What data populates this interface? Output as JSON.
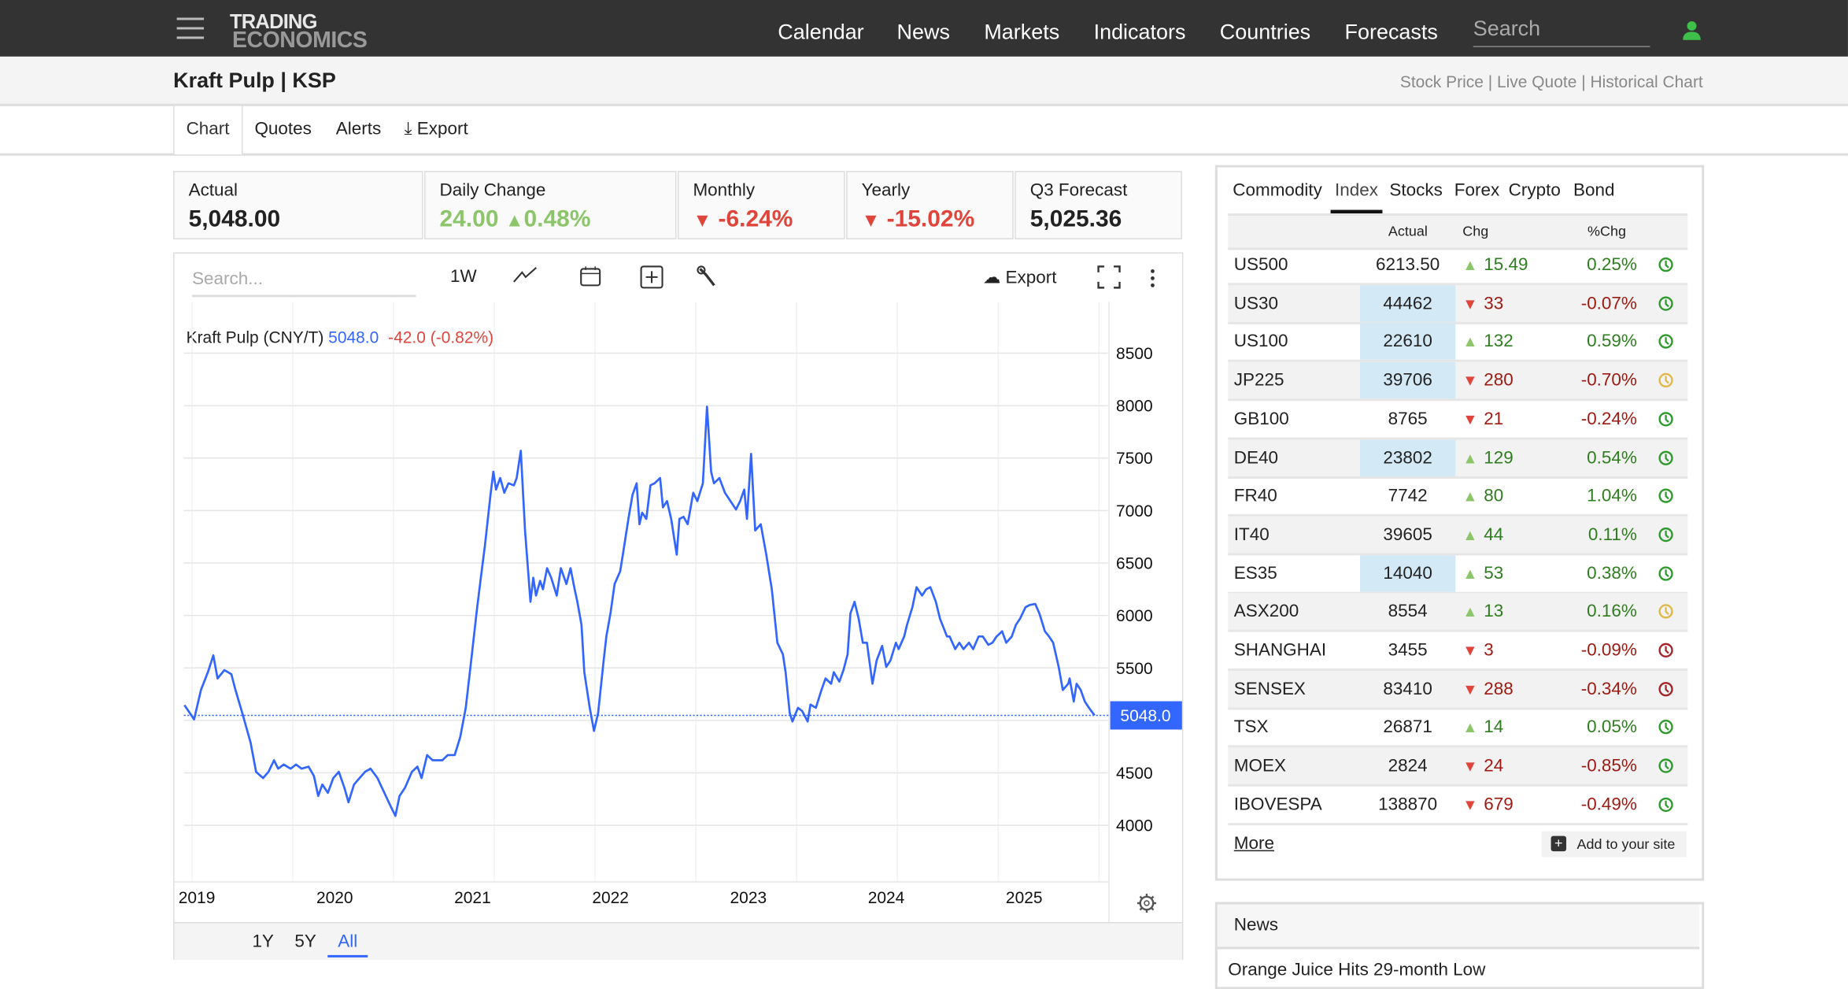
{
  "header": {
    "logo_line1": "TRADING",
    "logo_line2": "ECONOMICS",
    "nav": [
      "Calendar",
      "News",
      "Markets",
      "Indicators",
      "Countries",
      "Forecasts"
    ],
    "search_placeholder": "Search"
  },
  "page": {
    "title": "Kraft Pulp | KSP",
    "links": "Stock Price | Live Quote | Historical Chart"
  },
  "tabs": {
    "chart": "Chart",
    "quotes": "Quotes",
    "alerts": "Alerts",
    "export": "Export"
  },
  "stats": {
    "actual": {
      "label": "Actual",
      "value": "5,048.00"
    },
    "daily": {
      "label": "Daily Change",
      "value": "24.00",
      "pct": "0.48%"
    },
    "monthly": {
      "label": "Monthly",
      "value": "-6.24%"
    },
    "yearly": {
      "label": "Yearly",
      "value": "-15.02%"
    },
    "forecast": {
      "label": "Q3 Forecast",
      "value": "5,025.36"
    }
  },
  "toolbar": {
    "search_placeholder": "Search...",
    "interval": "1W",
    "export": "Export"
  },
  "legend": {
    "name": "Kraft Pulp (CNY/T)",
    "value": "5048.0",
    "change": "-42.0 (-0.82%)"
  },
  "ranges": [
    "1Y",
    "5Y",
    "All"
  ],
  "colors": {
    "line": "#3366ff",
    "up": "#8cc56a",
    "down": "#e0453c",
    "clock_green": "#2e9a2e",
    "clock_yellow": "#e0b84a",
    "clock_red": "#a3262a"
  },
  "chart_data": {
    "type": "line",
    "title": "Kraft Pulp (CNY/T)",
    "ylim": [
      3800,
      8800
    ],
    "yticks": [
      4000,
      4500,
      5000,
      5500,
      6000,
      6500,
      7000,
      7500,
      8000,
      8500
    ],
    "yticklabels": [
      "4000",
      "4500",
      "",
      "5500",
      "6000",
      "6500",
      "7000",
      "7500",
      "8000",
      "8500"
    ],
    "xticks": [
      2019,
      2020,
      2021,
      2022,
      2023,
      2024,
      2025
    ],
    "last_label": "5048.0",
    "last_value": 5048,
    "points": [
      [
        2018.91,
        5146
      ],
      [
        2018.98,
        5010
      ],
      [
        2019.03,
        5290
      ],
      [
        2019.08,
        5460
      ],
      [
        2019.12,
        5620
      ],
      [
        2019.15,
        5400
      ],
      [
        2019.2,
        5480
      ],
      [
        2019.25,
        5440
      ],
      [
        2019.28,
        5290
      ],
      [
        2019.33,
        5070
      ],
      [
        2019.39,
        4790
      ],
      [
        2019.43,
        4510
      ],
      [
        2019.48,
        4450
      ],
      [
        2019.52,
        4510
      ],
      [
        2019.56,
        4620
      ],
      [
        2019.59,
        4540
      ],
      [
        2019.63,
        4580
      ],
      [
        2019.68,
        4540
      ],
      [
        2019.72,
        4580
      ],
      [
        2019.76,
        4540
      ],
      [
        2019.81,
        4560
      ],
      [
        2019.85,
        4470
      ],
      [
        2019.88,
        4280
      ],
      [
        2019.91,
        4390
      ],
      [
        2019.95,
        4310
      ],
      [
        2019.99,
        4450
      ],
      [
        2020.03,
        4510
      ],
      [
        2020.07,
        4360
      ],
      [
        2020.1,
        4220
      ],
      [
        2020.14,
        4390
      ],
      [
        2020.18,
        4450
      ],
      [
        2020.22,
        4510
      ],
      [
        2020.26,
        4540
      ],
      [
        2020.31,
        4450
      ],
      [
        2020.36,
        4310
      ],
      [
        2020.41,
        4170
      ],
      [
        2020.44,
        4090
      ],
      [
        2020.47,
        4280
      ],
      [
        2020.51,
        4360
      ],
      [
        2020.56,
        4510
      ],
      [
        2020.6,
        4560
      ],
      [
        2020.63,
        4450
      ],
      [
        2020.67,
        4670
      ],
      [
        2020.71,
        4620
      ],
      [
        2020.78,
        4620
      ],
      [
        2020.82,
        4670
      ],
      [
        2020.87,
        4670
      ],
      [
        2020.91,
        4840
      ],
      [
        2020.95,
        5120
      ],
      [
        2020.99,
        5570
      ],
      [
        2021.03,
        6040
      ],
      [
        2021.06,
        6360
      ],
      [
        2021.09,
        6670
      ],
      [
        2021.13,
        7150
      ],
      [
        2021.15,
        7370
      ],
      [
        2021.17,
        7200
      ],
      [
        2021.2,
        7310
      ],
      [
        2021.23,
        7170
      ],
      [
        2021.26,
        7260
      ],
      [
        2021.3,
        7240
      ],
      [
        2021.32,
        7310
      ],
      [
        2021.35,
        7570
      ],
      [
        2021.38,
        6810
      ],
      [
        2021.42,
        6130
      ],
      [
        2021.44,
        6360
      ],
      [
        2021.46,
        6190
      ],
      [
        2021.49,
        6330
      ],
      [
        2021.51,
        6250
      ],
      [
        2021.54,
        6450
      ],
      [
        2021.57,
        6360
      ],
      [
        2021.61,
        6190
      ],
      [
        2021.64,
        6450
      ],
      [
        2021.68,
        6300
      ],
      [
        2021.71,
        6450
      ],
      [
        2021.74,
        6250
      ],
      [
        2021.76,
        6130
      ],
      [
        2021.79,
        5910
      ],
      [
        2021.81,
        5460
      ],
      [
        2021.85,
        5120
      ],
      [
        2021.88,
        4900
      ],
      [
        2021.91,
        5070
      ],
      [
        2021.95,
        5570
      ],
      [
        2021.97,
        5800
      ],
      [
        2022.0,
        6020
      ],
      [
        2022.03,
        6300
      ],
      [
        2022.07,
        6420
      ],
      [
        2022.09,
        6580
      ],
      [
        2022.13,
        6920
      ],
      [
        2022.16,
        7150
      ],
      [
        2022.19,
        7260
      ],
      [
        2022.21,
        6870
      ],
      [
        2022.23,
        6980
      ],
      [
        2022.26,
        6920
      ],
      [
        2022.29,
        7240
      ],
      [
        2022.32,
        7260
      ],
      [
        2022.36,
        7310
      ],
      [
        2022.38,
        7030
      ],
      [
        2022.41,
        7090
      ],
      [
        2022.44,
        6920
      ],
      [
        2022.48,
        6580
      ],
      [
        2022.5,
        6920
      ],
      [
        2022.53,
        6940
      ],
      [
        2022.56,
        6870
      ],
      [
        2022.6,
        7170
      ],
      [
        2022.63,
        7090
      ],
      [
        2022.67,
        7260
      ],
      [
        2022.7,
        7990
      ],
      [
        2022.73,
        7370
      ],
      [
        2022.75,
        7260
      ],
      [
        2022.79,
        7310
      ],
      [
        2022.83,
        7170
      ],
      [
        2022.87,
        7090
      ],
      [
        2022.91,
        7010
      ],
      [
        2022.94,
        7090
      ],
      [
        2022.97,
        7200
      ],
      [
        2022.99,
        6920
      ],
      [
        2023.02,
        7540
      ],
      [
        2023.05,
        6810
      ],
      [
        2023.09,
        6870
      ],
      [
        2023.13,
        6580
      ],
      [
        2023.17,
        6250
      ],
      [
        2023.21,
        5740
      ],
      [
        2023.25,
        5630
      ],
      [
        2023.27,
        5460
      ],
      [
        2023.3,
        5070
      ],
      [
        2023.32,
        4990
      ],
      [
        2023.36,
        5120
      ],
      [
        2023.39,
        5090
      ],
      [
        2023.43,
        4990
      ],
      [
        2023.45,
        5150
      ],
      [
        2023.49,
        5120
      ],
      [
        2023.53,
        5290
      ],
      [
        2023.56,
        5400
      ],
      [
        2023.6,
        5350
      ],
      [
        2023.62,
        5460
      ],
      [
        2023.66,
        5370
      ],
      [
        2023.69,
        5480
      ],
      [
        2023.72,
        5630
      ],
      [
        2023.74,
        6020
      ],
      [
        2023.77,
        6130
      ],
      [
        2023.8,
        5970
      ],
      [
        2023.83,
        5740
      ],
      [
        2023.86,
        5740
      ],
      [
        2023.9,
        5350
      ],
      [
        2023.93,
        5570
      ],
      [
        2023.97,
        5710
      ],
      [
        2024.0,
        5510
      ],
      [
        2024.03,
        5570
      ],
      [
        2024.07,
        5740
      ],
      [
        2024.09,
        5680
      ],
      [
        2024.13,
        5800
      ],
      [
        2024.15,
        5910
      ],
      [
        2024.19,
        6080
      ],
      [
        2024.22,
        6270
      ],
      [
        2024.26,
        6190
      ],
      [
        2024.29,
        6250
      ],
      [
        2024.32,
        6270
      ],
      [
        2024.36,
        6130
      ],
      [
        2024.39,
        5970
      ],
      [
        2024.44,
        5800
      ],
      [
        2024.46,
        5800
      ],
      [
        2024.5,
        5680
      ],
      [
        2024.53,
        5740
      ],
      [
        2024.56,
        5680
      ],
      [
        2024.6,
        5740
      ],
      [
        2024.63,
        5680
      ],
      [
        2024.67,
        5800
      ],
      [
        2024.7,
        5800
      ],
      [
        2024.74,
        5720
      ],
      [
        2024.77,
        5740
      ],
      [
        2024.8,
        5800
      ],
      [
        2024.84,
        5850
      ],
      [
        2024.87,
        5740
      ],
      [
        2024.91,
        5800
      ],
      [
        2024.94,
        5910
      ],
      [
        2024.97,
        5970
      ],
      [
        2025.01,
        6080
      ],
      [
        2025.04,
        6100
      ],
      [
        2025.08,
        6110
      ],
      [
        2025.11,
        6020
      ],
      [
        2025.15,
        5850
      ],
      [
        2025.18,
        5800
      ],
      [
        2025.21,
        5740
      ],
      [
        2025.25,
        5510
      ],
      [
        2025.28,
        5290
      ],
      [
        2025.32,
        5350
      ],
      [
        2025.33,
        5400
      ],
      [
        2025.36,
        5180
      ],
      [
        2025.38,
        5350
      ],
      [
        2025.41,
        5290
      ],
      [
        2025.44,
        5180
      ],
      [
        2025.47,
        5120
      ],
      [
        2025.51,
        5048
      ]
    ]
  },
  "markets": {
    "tabs": [
      "Commodity",
      "Index",
      "Stocks",
      "Forex",
      "Crypto",
      "Bond"
    ],
    "active_tab": "Index",
    "headers": {
      "actual": "Actual",
      "chg": "Chg",
      "pct": "%Chg"
    },
    "rows": [
      {
        "name": "US500",
        "actual": "6213.50",
        "chg": "15.49",
        "pct": "0.25%",
        "dir": "up",
        "hl": false,
        "clock": "green"
      },
      {
        "name": "US30",
        "actual": "44462",
        "chg": "33",
        "pct": "-0.07%",
        "dir": "down",
        "hl": true,
        "clock": "green"
      },
      {
        "name": "US100",
        "actual": "22610",
        "chg": "132",
        "pct": "0.59%",
        "dir": "up",
        "hl": true,
        "clock": "green"
      },
      {
        "name": "JP225",
        "actual": "39706",
        "chg": "280",
        "pct": "-0.70%",
        "dir": "down",
        "hl": true,
        "clock": "yellow"
      },
      {
        "name": "GB100",
        "actual": "8765",
        "chg": "21",
        "pct": "-0.24%",
        "dir": "down",
        "hl": false,
        "clock": "green"
      },
      {
        "name": "DE40",
        "actual": "23802",
        "chg": "129",
        "pct": "0.54%",
        "dir": "up",
        "hl": true,
        "clock": "green"
      },
      {
        "name": "FR40",
        "actual": "7742",
        "chg": "80",
        "pct": "1.04%",
        "dir": "up",
        "hl": false,
        "clock": "green"
      },
      {
        "name": "IT40",
        "actual": "39605",
        "chg": "44",
        "pct": "0.11%",
        "dir": "up",
        "hl": false,
        "clock": "green"
      },
      {
        "name": "ES35",
        "actual": "14040",
        "chg": "53",
        "pct": "0.38%",
        "dir": "up",
        "hl": true,
        "clock": "green"
      },
      {
        "name": "ASX200",
        "actual": "8554",
        "chg": "13",
        "pct": "0.16%",
        "dir": "up",
        "hl": false,
        "clock": "yellow"
      },
      {
        "name": "SHANGHAI",
        "actual": "3455",
        "chg": "3",
        "pct": "-0.09%",
        "dir": "down",
        "hl": false,
        "clock": "red"
      },
      {
        "name": "SENSEX",
        "actual": "83410",
        "chg": "288",
        "pct": "-0.34%",
        "dir": "down",
        "hl": false,
        "clock": "red"
      },
      {
        "name": "TSX",
        "actual": "26871",
        "chg": "14",
        "pct": "0.05%",
        "dir": "up",
        "hl": false,
        "clock": "green"
      },
      {
        "name": "MOEX",
        "actual": "2824",
        "chg": "24",
        "pct": "-0.85%",
        "dir": "down",
        "hl": false,
        "clock": "green"
      },
      {
        "name": "IBOVESPA",
        "actual": "138870",
        "chg": "679",
        "pct": "-0.49%",
        "dir": "down",
        "hl": false,
        "clock": "green"
      }
    ],
    "more": "More",
    "add_to_site": "Add to your site"
  },
  "news": {
    "title": "News",
    "items": [
      "Orange Juice Hits 29-month Low"
    ]
  }
}
